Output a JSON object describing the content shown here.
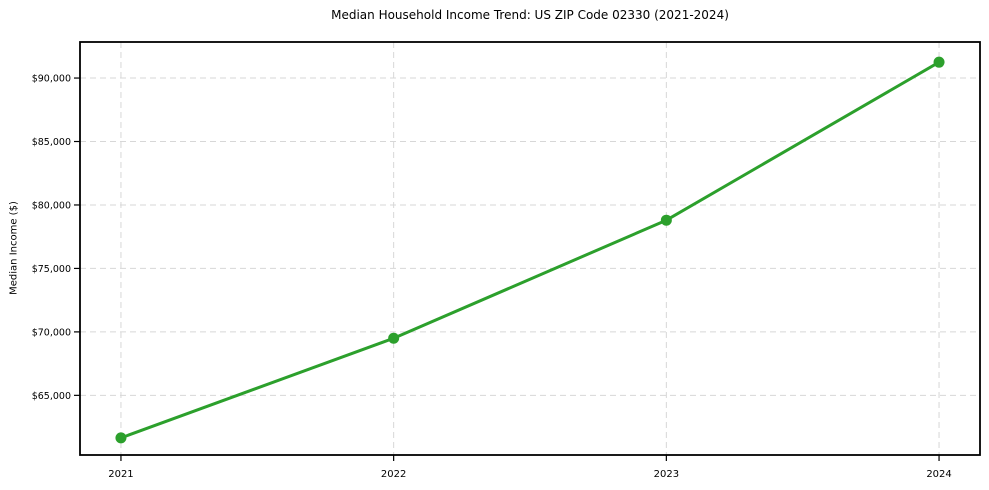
{
  "figure": {
    "title": "Median Household Income Trend: US ZIP Code 02330 (2021-2024)",
    "ylabel": "Median Income ($)"
  },
  "chart_data": {
    "type": "line",
    "title": "Median Household Income Trend: US ZIP Code 02330 (2021-2024)",
    "xlabel": "",
    "ylabel": "Median Income ($)",
    "categories": [
      "2021",
      "2022",
      "2023",
      "2024"
    ],
    "series": [
      {
        "name": "Median Household Income",
        "values": [
          61650,
          69500,
          78800,
          91250
        ]
      }
    ],
    "ytick_values": [
      65000,
      70000,
      75000,
      80000,
      85000,
      90000
    ],
    "ytick_labels": [
      "$65,000",
      "$70,000",
      "$75,000",
      "$80,000",
      "$85,000",
      "$90,000"
    ],
    "ylim": [
      60300,
      92840
    ],
    "grid": true,
    "grid_style": "dashed",
    "legend_position": "none",
    "line_color": "#2ca02c",
    "marker": "circle",
    "marker_color": "#2ca02c",
    "text_color": "#000000",
    "grid_color": "#d7d7d7",
    "background_color": "#ffffff"
  }
}
